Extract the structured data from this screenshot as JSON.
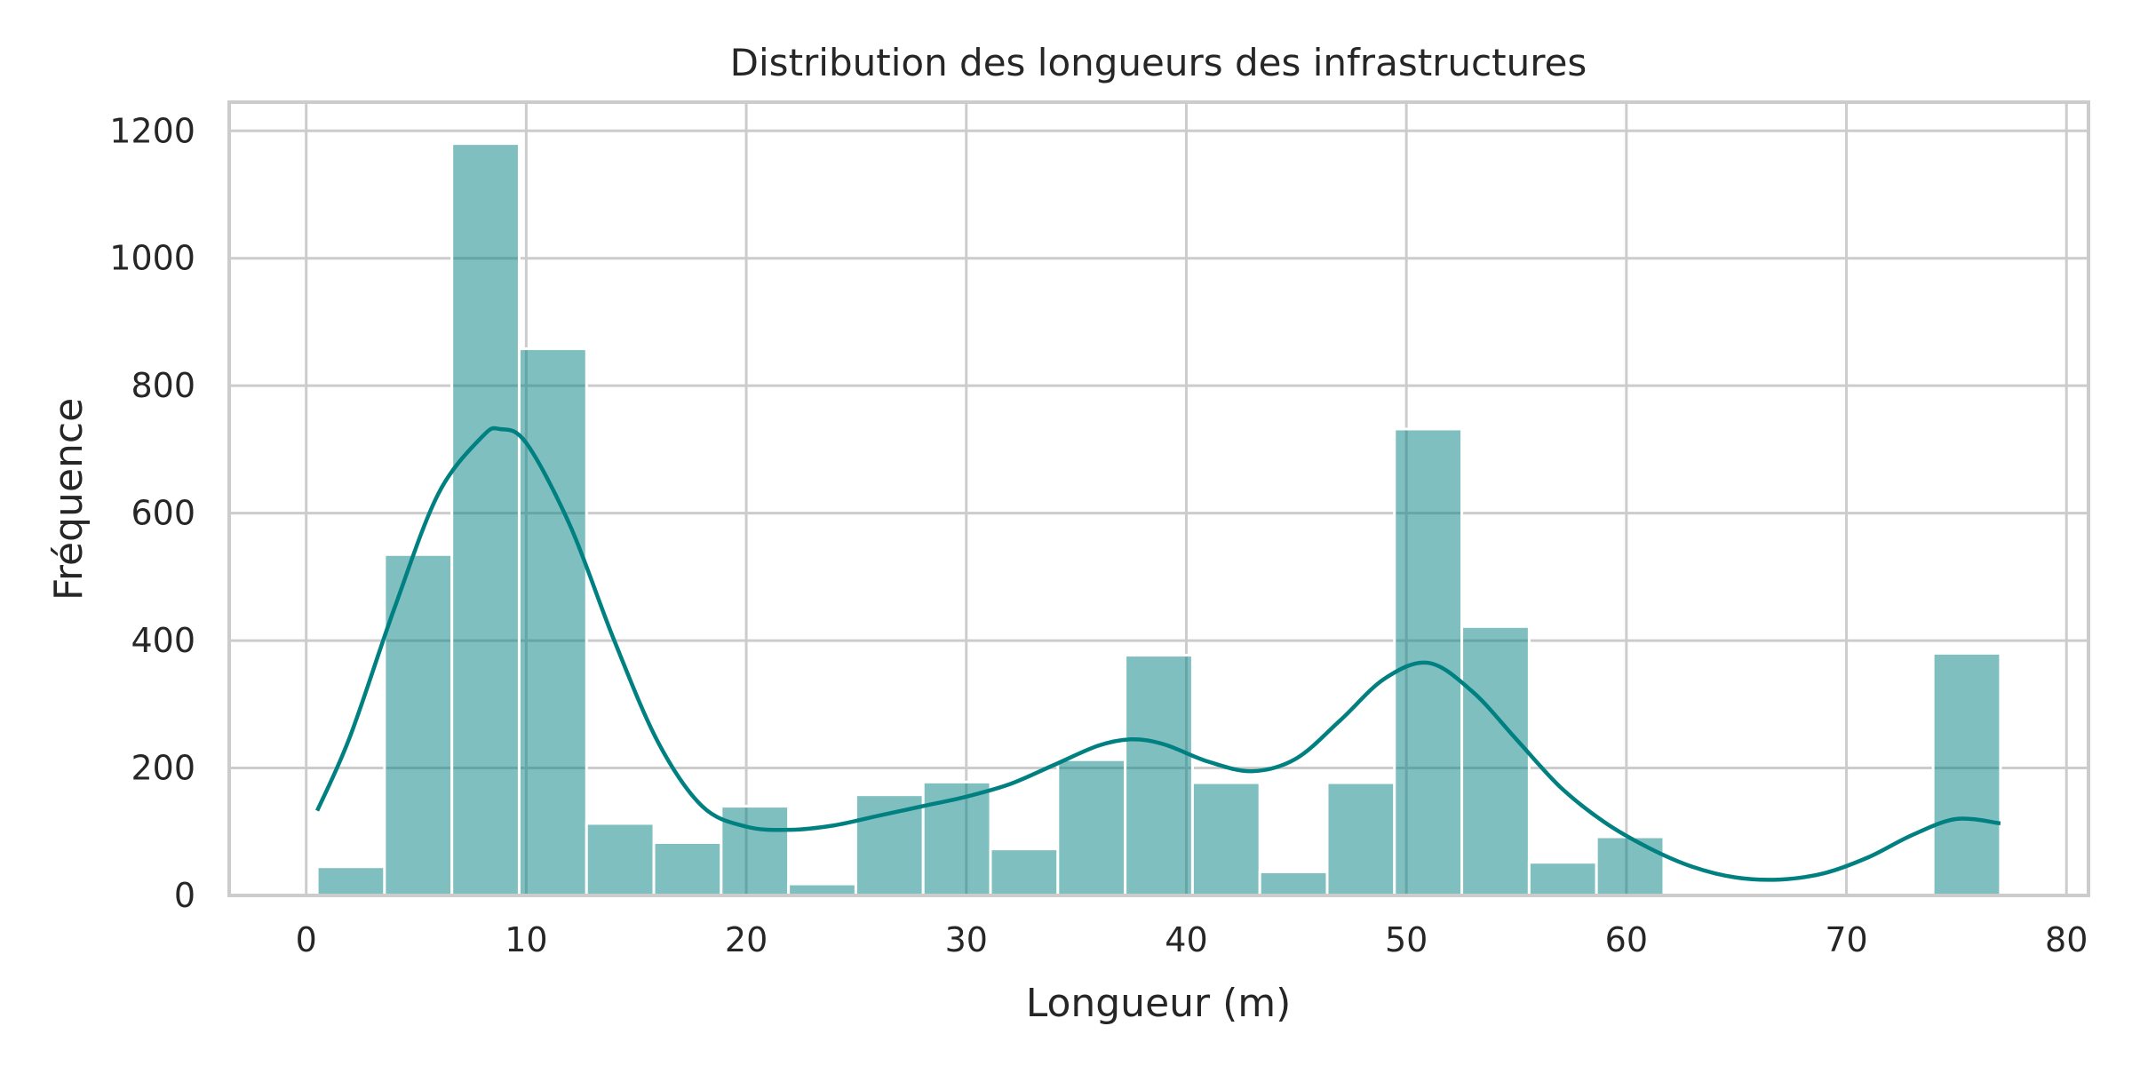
{
  "chart_data": {
    "type": "bar",
    "title": "Distribution des longueurs des infrastructures",
    "xlabel": "Longueur (m)",
    "ylabel": "Fréquence",
    "xlim": [
      -3.5,
      81
    ],
    "ylim": [
      0,
      1245
    ],
    "xticks": [
      0,
      10,
      20,
      30,
      40,
      50,
      60,
      70,
      80
    ],
    "yticks": [
      0,
      200,
      400,
      600,
      800,
      1000,
      1200
    ],
    "grid": true,
    "bin_width": 3.06,
    "bins": [
      {
        "x0": 0.5,
        "value": 45
      },
      {
        "x0": 3.56,
        "value": 535
      },
      {
        "x0": 6.62,
        "value": 1180
      },
      {
        "x0": 9.68,
        "value": 858
      },
      {
        "x0": 12.74,
        "value": 113
      },
      {
        "x0": 15.8,
        "value": 83
      },
      {
        "x0": 18.86,
        "value": 140
      },
      {
        "x0": 21.92,
        "value": 18
      },
      {
        "x0": 24.98,
        "value": 158
      },
      {
        "x0": 28.04,
        "value": 178
      },
      {
        "x0": 31.1,
        "value": 73
      },
      {
        "x0": 34.16,
        "value": 213
      },
      {
        "x0": 37.22,
        "value": 377
      },
      {
        "x0": 40.28,
        "value": 177
      },
      {
        "x0": 43.34,
        "value": 37
      },
      {
        "x0": 46.4,
        "value": 177
      },
      {
        "x0": 49.46,
        "value": 732
      },
      {
        "x0": 52.52,
        "value": 422
      },
      {
        "x0": 55.58,
        "value": 52
      },
      {
        "x0": 58.64,
        "value": 92
      },
      {
        "x0": 61.7,
        "value": 0
      },
      {
        "x0": 64.76,
        "value": 0
      },
      {
        "x0": 67.82,
        "value": 0
      },
      {
        "x0": 70.88,
        "value": 0
      },
      {
        "x0": 73.94,
        "value": 380
      }
    ],
    "kde": {
      "x": [
        0.5,
        2,
        4,
        6,
        8,
        8.8,
        10,
        12,
        14,
        16,
        18,
        20,
        22,
        24,
        26,
        28,
        30,
        32,
        34,
        36,
        37.5,
        39,
        41,
        43,
        45,
        47,
        49,
        51,
        53,
        55,
        57,
        59,
        61,
        63,
        65,
        67,
        69,
        71,
        73,
        75,
        77
      ],
      "y": [
        133,
        250,
        450,
        630,
        720,
        732,
        710,
        580,
        400,
        240,
        140,
        108,
        103,
        110,
        125,
        140,
        155,
        175,
        205,
        235,
        245,
        237,
        210,
        195,
        215,
        275,
        340,
        365,
        320,
        245,
        170,
        115,
        75,
        45,
        28,
        25,
        35,
        60,
        95,
        120,
        113
      ]
    },
    "colors": {
      "bar": "#008080",
      "line": "#008080",
      "grid": "#cccccc"
    }
  }
}
